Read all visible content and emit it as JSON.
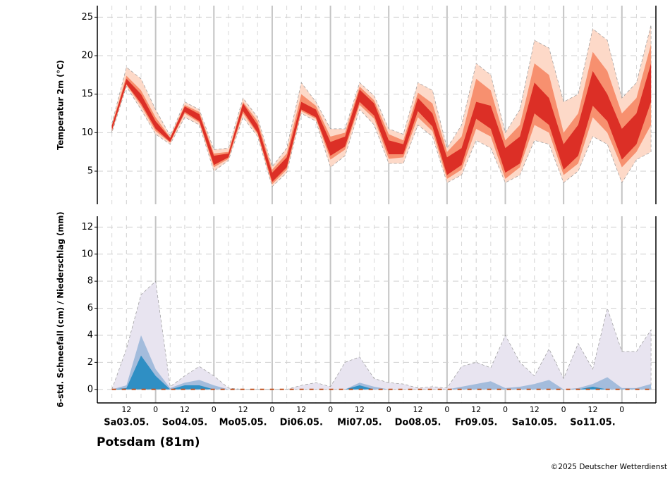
{
  "chart_data": [
    {
      "type": "band",
      "ylabel": "Temperatur 2m (°C)",
      "x": [
        6,
        12,
        18,
        24,
        30,
        36,
        42,
        48,
        54,
        60,
        66,
        72,
        78,
        84,
        90,
        96,
        102,
        108,
        114,
        120,
        126,
        132,
        138,
        144,
        150,
        156,
        162,
        168,
        174,
        180,
        186,
        192,
        198,
        204,
        210,
        216,
        222,
        228
      ],
      "bands": [
        {
          "color": "#fdd9c8",
          "low": [
            10,
            16,
            13,
            9.8,
            8.5,
            12,
            11,
            5,
            6.4,
            12,
            9.5,
            3,
            4.8,
            12.5,
            11.5,
            5.5,
            7,
            13,
            11,
            6,
            6,
            11,
            9.5,
            3.5,
            4.5,
            9,
            8,
            3.5,
            4.5,
            9,
            8.5,
            3.5,
            5,
            9.5,
            8.5,
            3.5,
            6.5,
            7.5
          ],
          "high": [
            11.2,
            18.5,
            17,
            13,
            9.6,
            14,
            13,
            7.8,
            8,
            14.5,
            12,
            5.6,
            8,
            16.5,
            14,
            10.5,
            10.5,
            16.5,
            14.8,
            10.5,
            9.8,
            16.5,
            15.5,
            8,
            11,
            19,
            17.5,
            10,
            13,
            22,
            21,
            14,
            15,
            23.5,
            22,
            14.5,
            16.5,
            24
          ]
        },
        {
          "color": "#f7906f",
          "low": [
            10.2,
            16.2,
            13.5,
            10.2,
            8.7,
            12.5,
            11.3,
            5.5,
            6.6,
            12.5,
            9.8,
            3.3,
            5.2,
            12.8,
            11.8,
            6.5,
            7.8,
            13.6,
            11.8,
            6.6,
            6.8,
            12,
            10.2,
            4,
            5.2,
            10.5,
            9.5,
            4,
            5.5,
            11,
            10,
            4.5,
            6,
            12,
            10,
            5.5,
            7.5,
            11
          ],
          "high": [
            11,
            17.4,
            15.5,
            12,
            9.4,
            13.6,
            12.7,
            7.3,
            7.5,
            14,
            11.5,
            5.2,
            7.3,
            15,
            13.5,
            9.5,
            10,
            16,
            14.2,
            9.8,
            9,
            15.2,
            13.8,
            7.5,
            9.5,
            17,
            15.5,
            9,
            11,
            19,
            17.5,
            10,
            12.5,
            20.5,
            18,
            12.5,
            14.5,
            21.5
          ]
        },
        {
          "color": "#dc2f26",
          "low": [
            10.3,
            16.3,
            13.8,
            10.5,
            8.8,
            12.7,
            11.5,
            5.8,
            6.8,
            12.8,
            10,
            3.6,
            5.5,
            13,
            12,
            7,
            8.2,
            14,
            12.2,
            7.2,
            7.2,
            12.8,
            10.8,
            4.5,
            5.8,
            11.8,
            10.5,
            4.8,
            6,
            12.5,
            11,
            5.2,
            7,
            13.5,
            11.5,
            6.5,
            8.5,
            14
          ],
          "high": [
            10.9,
            17,
            15,
            11.5,
            9.3,
            13.4,
            12.4,
            7,
            7.3,
            13.8,
            11,
            4.8,
            6.8,
            14,
            13,
            8.8,
            9.5,
            15.6,
            13.8,
            9,
            8.5,
            14.5,
            12.5,
            6.8,
            8,
            14,
            13.5,
            8,
            9.5,
            16.5,
            14.5,
            8.5,
            11,
            18,
            15,
            10.5,
            12.5,
            19
          ]
        }
      ],
      "xlim": [
        0,
        230
      ],
      "ylim": [
        0.7,
        26.5
      ],
      "yticks": [
        5,
        10,
        15,
        20,
        25
      ],
      "grid": true
    },
    {
      "type": "area",
      "ylabel": "6-std. Schneefall (cm) / Niederschlag (mm)",
      "x": [
        6,
        12,
        18,
        24,
        30,
        36,
        42,
        48,
        54,
        60,
        66,
        72,
        78,
        84,
        90,
        96,
        102,
        108,
        114,
        120,
        126,
        132,
        138,
        144,
        150,
        156,
        162,
        168,
        174,
        180,
        186,
        192,
        198,
        204,
        210,
        216,
        222,
        228
      ],
      "series": [
        {
          "color": "#e8e4f0",
          "values": [
            0,
            3,
            7,
            8,
            0.2,
            1,
            1.7,
            1,
            0.1,
            0,
            0,
            0,
            0,
            0.3,
            0.5,
            0.2,
            2,
            2.4,
            0.8,
            0.5,
            0.4,
            0.1,
            0.2,
            0.1,
            1.7,
            2,
            1.6,
            4,
            2,
            1,
            3,
            0.8,
            3.4,
            1.5,
            6,
            2.8,
            2.8,
            4.4
          ]
        },
        {
          "color": "#a3bcdc",
          "values": [
            0,
            0.3,
            4,
            1.5,
            0.1,
            0.5,
            0.7,
            0.3,
            0,
            0,
            0,
            0,
            0,
            0,
            0,
            0,
            0,
            0.5,
            0.2,
            0,
            0,
            0,
            0,
            0,
            0.2,
            0.4,
            0.6,
            0.1,
            0.2,
            0.4,
            0.7,
            0,
            0.1,
            0.4,
            0.9,
            0.1,
            0.1,
            0.4
          ]
        },
        {
          "color": "#2f8fc4",
          "values": [
            0,
            0.1,
            2.5,
            1,
            0,
            0.3,
            0.3,
            0,
            0,
            0,
            0,
            0,
            0,
            0,
            0,
            0,
            0,
            0.3,
            0,
            0,
            0,
            0,
            0,
            0,
            0,
            0,
            0,
            0,
            0,
            0,
            0,
            0,
            0,
            0.2,
            0,
            0,
            0,
            0
          ]
        }
      ],
      "xlim": [
        0,
        230
      ],
      "ylim": [
        -1,
        12.8
      ],
      "yticks": [
        0,
        2,
        4,
        6,
        8,
        10,
        12
      ],
      "grid": true,
      "xticks": [
        {
          "value": 12,
          "label": "12"
        },
        {
          "value": 24,
          "label": "0"
        },
        {
          "value": 36,
          "label": "12"
        },
        {
          "value": 48,
          "label": "0"
        },
        {
          "value": 60,
          "label": "12"
        },
        {
          "value": 72,
          "label": "0"
        },
        {
          "value": 84,
          "label": "12"
        },
        {
          "value": 96,
          "label": "0"
        },
        {
          "value": 108,
          "label": "12"
        },
        {
          "value": 120,
          "label": "0"
        },
        {
          "value": 132,
          "label": "12"
        },
        {
          "value": 144,
          "label": "0"
        },
        {
          "value": 156,
          "label": "12"
        },
        {
          "value": 168,
          "label": "0"
        },
        {
          "value": 180,
          "label": "12"
        },
        {
          "value": 192,
          "label": "0"
        },
        {
          "value": 204,
          "label": "12"
        },
        {
          "value": 216,
          "label": "0"
        }
      ],
      "xlabels": [
        {
          "value": 12,
          "label": "Sa03.05."
        },
        {
          "value": 36,
          "label": "So04.05."
        },
        {
          "value": 60,
          "label": "Mo05.05."
        },
        {
          "value": 84,
          "label": "Di06.05."
        },
        {
          "value": 108,
          "label": "Mi07.05."
        },
        {
          "value": 132,
          "label": "Do08.05."
        },
        {
          "value": 156,
          "label": "Fr09.05."
        },
        {
          "value": 180,
          "label": "Sa10.05."
        },
        {
          "value": 204,
          "label": "So11.05."
        }
      ]
    }
  ],
  "title": "Potsdam (81m)",
  "credit": "©2025 Deutscher Wetterdienst"
}
